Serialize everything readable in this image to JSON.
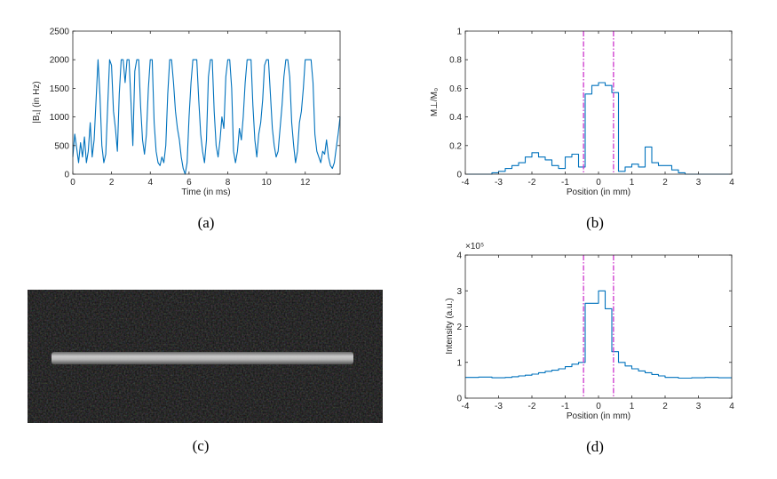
{
  "colors": {
    "series": "#0072bd",
    "marker_line": "#cc33cc",
    "axis": "#262626"
  },
  "chart_data": [
    {
      "id": "a",
      "type": "line",
      "caption": "(a)",
      "xlabel": "Time (in ms)",
      "ylabel": "|B₁| (in Hz)",
      "xlim": [
        0,
        13.8
      ],
      "ylim": [
        0,
        2500
      ],
      "xticks": [
        "0",
        "2",
        "4",
        "6",
        "8",
        "10",
        "12"
      ],
      "xtick_values": [
        0,
        2,
        4,
        6,
        8,
        10,
        12
      ],
      "yticks": [
        "0",
        "500",
        "1000",
        "1500",
        "2000",
        "2500"
      ],
      "ytick_values": [
        0,
        500,
        1000,
        1500,
        2000,
        2500
      ],
      "series": [
        {
          "x": [
            0,
            0.1,
            0.2,
            0.3,
            0.4,
            0.5,
            0.6,
            0.7,
            0.8,
            0.9,
            1.0,
            1.1,
            1.2,
            1.3,
            1.4,
            1.5,
            1.6,
            1.7,
            1.8,
            1.9,
            2.0,
            2.1,
            2.2,
            2.3,
            2.4,
            2.5,
            2.6,
            2.7,
            2.8,
            2.9,
            3.0,
            3.1,
            3.2,
            3.3,
            3.4,
            3.5,
            3.6,
            3.7,
            3.8,
            3.9,
            4.0,
            4.1,
            4.2,
            4.3,
            4.4,
            4.5,
            4.6,
            4.7,
            4.8,
            4.9,
            5.0,
            5.1,
            5.2,
            5.3,
            5.4,
            5.5,
            5.6,
            5.7,
            5.8,
            5.9,
            6.0,
            6.1,
            6.2,
            6.3,
            6.4,
            6.5,
            6.6,
            6.7,
            6.8,
            6.9,
            7.0,
            7.1,
            7.2,
            7.3,
            7.4,
            7.5,
            7.6,
            7.7,
            7.8,
            7.9,
            8.0,
            8.1,
            8.2,
            8.3,
            8.4,
            8.5,
            8.6,
            8.7,
            8.8,
            8.9,
            9.0,
            9.1,
            9.2,
            9.3,
            9.4,
            9.5,
            9.6,
            9.7,
            9.8,
            9.9,
            10.0,
            10.1,
            10.2,
            10.3,
            10.4,
            10.5,
            10.6,
            10.7,
            10.8,
            10.9,
            11.0,
            11.1,
            11.2,
            11.3,
            11.4,
            11.5,
            11.6,
            11.7,
            11.8,
            11.9,
            12.0,
            12.1,
            12.2,
            12.3,
            12.4,
            12.5,
            12.6,
            12.7,
            12.8,
            12.9,
            13.0,
            13.1,
            13.2,
            13.3,
            13.4,
            13.5,
            13.6,
            13.7,
            13.8
          ],
          "y": [
            300,
            700,
            450,
            200,
            550,
            300,
            650,
            200,
            400,
            900,
            300,
            600,
            1300,
            2000,
            1400,
            500,
            200,
            350,
            1200,
            2000,
            1900,
            1100,
            800,
            400,
            1400,
            2000,
            2000,
            1600,
            2000,
            2000,
            1300,
            500,
            1800,
            2000,
            2000,
            1200,
            600,
            350,
            700,
            1500,
            2000,
            2000,
            900,
            400,
            200,
            150,
            300,
            200,
            500,
            1400,
            2000,
            2000,
            1600,
            1100,
            800,
            600,
            300,
            100,
            0,
            200,
            1000,
            1600,
            2000,
            2000,
            2000,
            1300,
            700,
            400,
            200,
            600,
            1700,
            2000,
            2000,
            1100,
            500,
            300,
            600,
            1000,
            800,
            1700,
            2000,
            2000,
            1500,
            400,
            200,
            400,
            800,
            600,
            1000,
            1600,
            2000,
            2000,
            2000,
            1200,
            600,
            300,
            700,
            900,
            1300,
            1900,
            2000,
            2000,
            1400,
            800,
            500,
            300,
            400,
            800,
            1200,
            1700,
            2000,
            2000,
            1700,
            900,
            500,
            200,
            400,
            900,
            1100,
            1500,
            2000,
            2000,
            2000,
            2000,
            1600,
            700,
            400,
            300,
            200,
            400,
            350,
            600,
            300,
            150,
            100,
            200,
            450,
            700,
            1000
          ]
        }
      ]
    },
    {
      "id": "b",
      "type": "line",
      "caption": "(b)",
      "xlabel": "Position (in mm)",
      "ylabel": "M⊥/M₀",
      "xlim": [
        -4,
        4
      ],
      "ylim": [
        0,
        1
      ],
      "xticks": [
        "-4",
        "-3",
        "-2",
        "-1",
        "0",
        "1",
        "2",
        "3",
        "4"
      ],
      "xtick_values": [
        -4,
        -3,
        -2,
        -1,
        0,
        1,
        2,
        3,
        4
      ],
      "yticks": [
        "0",
        "0.2",
        "0.4",
        "0.6",
        "0.8",
        "1"
      ],
      "ytick_values": [
        0,
        0.2,
        0.4,
        0.6,
        0.8,
        1
      ],
      "vlines": [
        -0.45,
        0.45
      ],
      "series": [
        {
          "step": true,
          "x": [
            -4,
            -3.2,
            -3.0,
            -2.8,
            -2.6,
            -2.4,
            -2.2,
            -2.0,
            -1.8,
            -1.6,
            -1.4,
            -1.2,
            -1.0,
            -0.8,
            -0.6,
            -0.4,
            -0.2,
            0.0,
            0.2,
            0.4,
            0.6,
            0.8,
            1.0,
            1.2,
            1.4,
            1.6,
            1.8,
            2.0,
            2.2,
            2.4,
            2.6,
            2.8,
            3.0,
            3.2,
            4
          ],
          "y": [
            0.0,
            0.01,
            0.02,
            0.04,
            0.06,
            0.08,
            0.12,
            0.15,
            0.12,
            0.1,
            0.06,
            0.04,
            0.12,
            0.14,
            0.05,
            0.56,
            0.62,
            0.64,
            0.62,
            0.57,
            0.02,
            0.05,
            0.07,
            0.05,
            0.19,
            0.08,
            0.06,
            0.06,
            0.03,
            0.01,
            0.0,
            0.0,
            0.0,
            0.0,
            0.0
          ]
        }
      ]
    },
    {
      "id": "c",
      "type": "heatmap",
      "caption": "(c)"
    },
    {
      "id": "d",
      "type": "line",
      "caption": "(d)",
      "xlabel": "Position (in mm)",
      "ylabel": "Intensity (a.u.)",
      "exponent_label": "×10⁵",
      "xlim": [
        -4,
        4
      ],
      "ylim": [
        0,
        4
      ],
      "xticks": [
        "-4",
        "-3",
        "-2",
        "-1",
        "0",
        "1",
        "2",
        "3",
        "4"
      ],
      "xtick_values": [
        -4,
        -3,
        -2,
        -1,
        0,
        1,
        2,
        3,
        4
      ],
      "yticks": [
        "0",
        "1",
        "2",
        "3",
        "4"
      ],
      "ytick_values": [
        0,
        1,
        2,
        3,
        4
      ],
      "vlines": [
        -0.45,
        0.45
      ],
      "series": [
        {
          "step": true,
          "x": [
            -4.0,
            -3.6,
            -3.2,
            -2.8,
            -2.6,
            -2.4,
            -2.2,
            -2.0,
            -1.8,
            -1.6,
            -1.4,
            -1.2,
            -1.0,
            -0.8,
            -0.6,
            -0.4,
            -0.2,
            0.0,
            0.2,
            0.4,
            0.6,
            0.8,
            1.0,
            1.2,
            1.4,
            1.6,
            1.8,
            2.0,
            2.4,
            2.8,
            3.2,
            3.6,
            4.0
          ],
          "y": [
            0.58,
            0.59,
            0.57,
            0.58,
            0.6,
            0.62,
            0.64,
            0.67,
            0.71,
            0.75,
            0.78,
            0.82,
            0.88,
            0.95,
            1.0,
            2.65,
            2.65,
            3.0,
            2.5,
            1.3,
            1.0,
            0.9,
            0.82,
            0.76,
            0.71,
            0.66,
            0.62,
            0.58,
            0.56,
            0.57,
            0.58,
            0.57,
            0.57
          ]
        }
      ]
    }
  ]
}
